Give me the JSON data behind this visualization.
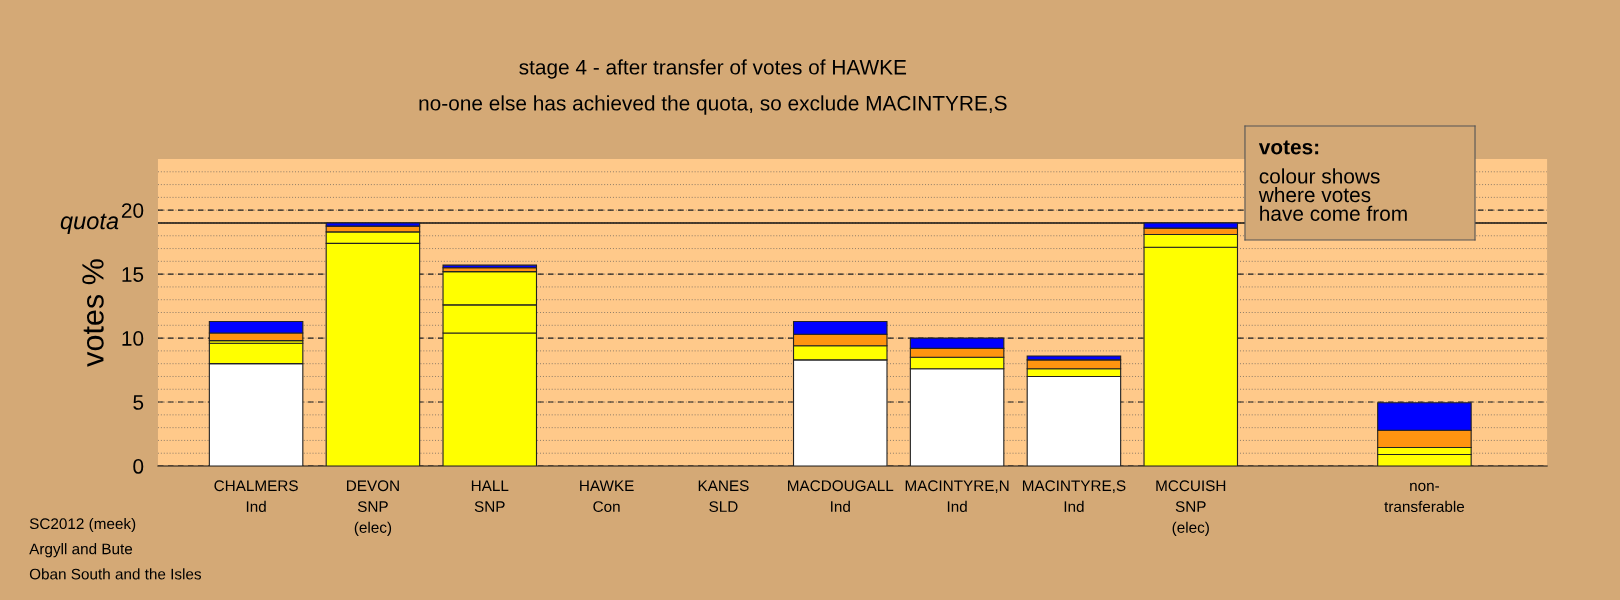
{
  "chart_data": {
    "type": "bar",
    "stacked": true,
    "title": "stage 4 - after transfer of votes of HAWKE",
    "subtitle": "no-one else has achieved the quota, so exclude MACINTYRE,S",
    "ylabel": "votes %",
    "categories": [
      "CHALMERS\nInd",
      "DEVON\nSNP\n(elec)",
      "HALL\nSNP",
      "HAWKE\nCon",
      "KANES\nSLD",
      "MACDOUGALL\nInd",
      "MACINTYRE,N\nInd",
      "MACINTYRE,S\nInd",
      "MCCUISH\nSNP\n(elec)",
      null,
      "non-\ntransferable"
    ],
    "series": [
      {
        "colors": [
          "#ffffff",
          "#ffff00",
          "#ffff00",
          "#ffffff",
          "#ffffff",
          "#ffffff",
          "#ffffff",
          "#ffffff",
          "#ffff00",
          "#ffffff",
          "#ffff00"
        ],
        "values": [
          8.0,
          17.4,
          10.4,
          null,
          null,
          8.3,
          7.6,
          7.0,
          17.1,
          null,
          null
        ]
      },
      {
        "color": "#ffff00",
        "values": [
          1.6,
          0.9,
          2.2,
          null,
          null,
          1.1,
          0.9,
          0.6,
          1.0,
          null,
          0.9
        ]
      },
      {
        "color": "#ffff00",
        "values": [
          0.2,
          null,
          2.6,
          null,
          null,
          null,
          null,
          null,
          null,
          null,
          0.55
        ]
      },
      {
        "color": "#ff9410",
        "values": [
          0.6,
          0.45,
          0.3,
          null,
          null,
          0.9,
          0.7,
          0.7,
          0.5,
          null,
          1.35
        ]
      },
      {
        "color": "#0000ff",
        "values": [
          0.9,
          0.25,
          0.2,
          null,
          null,
          1.0,
          0.8,
          0.3,
          0.4,
          null,
          2.15
        ]
      }
    ],
    "ylim": [
      0,
      24
    ],
    "yticks": [
      0,
      5,
      10,
      15,
      20
    ],
    "grid": "y",
    "ref_lines": [
      {
        "axis": "y",
        "value": 19,
        "label": "quota",
        "color": "#111111",
        "line_style": "solid"
      }
    ],
    "annotations": [
      "votes:",
      "colour shows\nwhere votes\nhave come from",
      "SC2012 (meek)",
      "Argyll and Bute",
      "Oban South and the Isles"
    ]
  }
}
